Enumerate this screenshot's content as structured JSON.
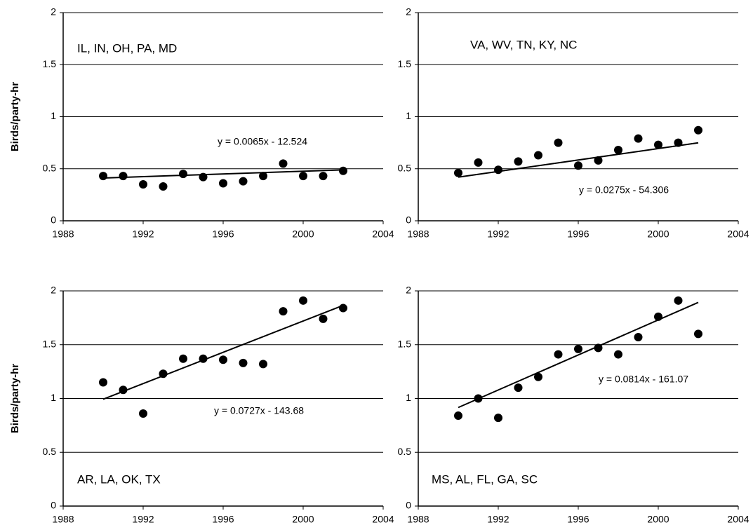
{
  "chart_data": [
    {
      "type": "scatter",
      "title": "IL, IN, OH, PA, MD",
      "ylabel": "Birds/party-hr",
      "x": [
        1990,
        1991,
        1992,
        1993,
        1994,
        1995,
        1996,
        1997,
        1998,
        1999,
        2000,
        2001,
        2002
      ],
      "series": [
        {
          "color": "#000000",
          "values": [
            0.43,
            0.43,
            0.35,
            0.33,
            0.45,
            0.42,
            0.36,
            0.38,
            0.43,
            0.55,
            0.43,
            0.43,
            0.48
          ]
        }
      ],
      "trendline": {
        "slope": 0.0065,
        "intercept": -12.524,
        "label": "y = 0.0065x - 12.524"
      },
      "xlim": [
        1988,
        2004
      ],
      "xticks": [
        1988,
        1992,
        1996,
        2000,
        2004
      ],
      "ylim": [
        0,
        2
      ],
      "yticks": [
        0,
        0.5,
        1,
        1.5,
        2
      ],
      "grid": true
    },
    {
      "type": "scatter",
      "title": "VA, WV, TN,  KY, NC",
      "x": [
        1990,
        1991,
        1992,
        1993,
        1994,
        1995,
        1996,
        1997,
        1998,
        1999,
        2000,
        2001,
        2002
      ],
      "series": [
        {
          "color": "#000000",
          "values": [
            0.46,
            0.56,
            0.49,
            0.57,
            0.63,
            0.75,
            0.53,
            0.58,
            0.68,
            0.79,
            0.73,
            0.75,
            0.87
          ]
        }
      ],
      "trendline": {
        "slope": 0.0275,
        "intercept": -54.306,
        "label": "y = 0.0275x - 54.306"
      },
      "xlim": [
        1988,
        2004
      ],
      "xticks": [
        1988,
        1992,
        1996,
        2000,
        2004
      ],
      "ylim": [
        0,
        2
      ],
      "yticks": [
        0,
        0.5,
        1,
        1.5,
        2
      ],
      "grid": true
    },
    {
      "type": "scatter",
      "title": "AR, LA, OK, TX",
      "ylabel": "Birds/party-hr",
      "x": [
        1990,
        1991,
        1992,
        1993,
        1994,
        1995,
        1996,
        1997,
        1998,
        1999,
        2000,
        2001,
        2002
      ],
      "series": [
        {
          "color": "#000000",
          "values": [
            1.15,
            1.08,
            0.86,
            1.23,
            1.37,
            1.37,
            1.36,
            1.33,
            1.32,
            1.81,
            1.91,
            1.74,
            1.84
          ]
        }
      ],
      "trendline": {
        "slope": 0.0727,
        "intercept": -143.68,
        "label": "y = 0.0727x - 143.68"
      },
      "xlim": [
        1988,
        2004
      ],
      "xticks": [
        1988,
        1992,
        1996,
        2000,
        2004
      ],
      "ylim": [
        0,
        2
      ],
      "yticks": [
        0,
        0.5,
        1,
        1.5,
        2
      ],
      "grid": true
    },
    {
      "type": "scatter",
      "title": "MS, AL, FL, GA, SC",
      "x": [
        1990,
        1991,
        1992,
        1993,
        1994,
        1995,
        1996,
        1997,
        1998,
        1999,
        2000,
        2001,
        2002
      ],
      "series": [
        {
          "color": "#000000",
          "values": [
            0.84,
            1.0,
            0.82,
            1.1,
            1.2,
            1.41,
            1.46,
            1.47,
            1.41,
            1.57,
            1.76,
            1.91,
            1.6
          ]
        }
      ],
      "trendline": {
        "slope": 0.0814,
        "intercept": -161.07,
        "label": "y = 0.0814x - 161.07"
      },
      "xlim": [
        1988,
        2004
      ],
      "xticks": [
        1988,
        1992,
        1996,
        2000,
        2004
      ],
      "ylim": [
        0,
        2
      ],
      "yticks": [
        0,
        0.5,
        1,
        1.5,
        2
      ],
      "grid": true
    }
  ]
}
